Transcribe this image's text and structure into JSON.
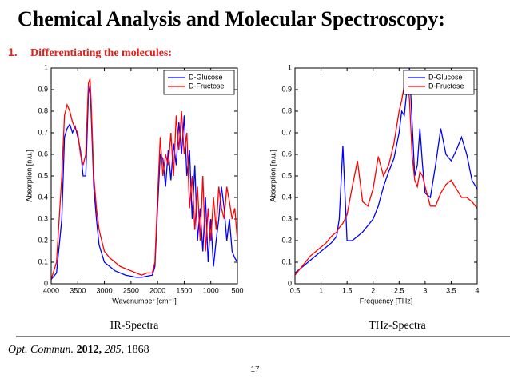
{
  "slide": {
    "title": "Chemical Analysis and Molecular Spectroscopy:",
    "item_number": "1.",
    "item_text": "Differentiating the molecules:",
    "captions": [
      "IR-Spectra",
      "THz-Spectra"
    ],
    "citation": {
      "journal": "Opt. Commun.",
      "year": "2012,",
      "volume": "285,",
      "pages": "1868"
    },
    "page_number": "17"
  },
  "chart_data": [
    {
      "type": "line",
      "xlabel": "Wavenumber [cm⁻¹]",
      "ylabel": "Absorption [n.u.]",
      "xlim": [
        4000,
        500
      ],
      "xticks": [
        4000,
        3500,
        3000,
        2500,
        2000,
        1500,
        1000,
        500
      ],
      "ylim": [
        0,
        1
      ],
      "yticks": [
        0,
        0.1,
        0.2,
        0.3,
        0.4,
        0.5,
        0.6,
        0.7,
        0.8,
        0.9,
        1
      ],
      "legend": "upper right",
      "x": [
        4000,
        3900,
        3800,
        3750,
        3700,
        3650,
        3600,
        3550,
        3500,
        3450,
        3400,
        3350,
        3300,
        3270,
        3250,
        3200,
        3150,
        3100,
        3000,
        2900,
        2800,
        2700,
        2600,
        2500,
        2400,
        2300,
        2200,
        2100,
        2050,
        2000,
        1950,
        1900,
        1850,
        1800,
        1750,
        1700,
        1650,
        1600,
        1550,
        1500,
        1450,
        1400,
        1350,
        1300,
        1250,
        1200,
        1150,
        1100,
        1050,
        1000,
        950,
        900,
        850,
        800,
        750,
        700,
        650,
        600,
        550,
        500
      ],
      "series": [
        {
          "name": "D-Glucose",
          "color": "#0000ff",
          "values": [
            0.02,
            0.05,
            0.3,
            0.68,
            0.72,
            0.74,
            0.7,
            0.73,
            0.68,
            0.62,
            0.5,
            0.5,
            0.88,
            0.92,
            0.8,
            0.45,
            0.3,
            0.18,
            0.1,
            0.08,
            0.06,
            0.05,
            0.04,
            0.035,
            0.03,
            0.03,
            0.035,
            0.04,
            0.08,
            0.35,
            0.6,
            0.58,
            0.45,
            0.62,
            0.48,
            0.65,
            0.55,
            0.75,
            0.6,
            0.78,
            0.5,
            0.62,
            0.3,
            0.55,
            0.2,
            0.35,
            0.15,
            0.4,
            0.1,
            0.3,
            0.08,
            0.2,
            0.3,
            0.45,
            0.35,
            0.2,
            0.3,
            0.15,
            0.12,
            0.1
          ]
        },
        {
          "name": "D-Fructose",
          "color": "#ff0000",
          "values": [
            0.02,
            0.1,
            0.5,
            0.78,
            0.83,
            0.8,
            0.75,
            0.72,
            0.7,
            0.6,
            0.55,
            0.6,
            0.93,
            0.95,
            0.85,
            0.5,
            0.35,
            0.25,
            0.15,
            0.12,
            0.1,
            0.08,
            0.07,
            0.06,
            0.05,
            0.04,
            0.05,
            0.05,
            0.1,
            0.4,
            0.68,
            0.5,
            0.6,
            0.55,
            0.7,
            0.5,
            0.78,
            0.62,
            0.8,
            0.6,
            0.7,
            0.35,
            0.5,
            0.25,
            0.45,
            0.2,
            0.5,
            0.15,
            0.35,
            0.2,
            0.4,
            0.25,
            0.45,
            0.35,
            0.3,
            0.45,
            0.38,
            0.3,
            0.35,
            0.2
          ]
        }
      ]
    },
    {
      "type": "line",
      "xlabel": "Frequency [THz]",
      "ylabel": "Absorption [n.u.]",
      "xlim": [
        0.5,
        4
      ],
      "xticks": [
        0.5,
        1,
        1.5,
        2,
        2.5,
        3,
        3.5,
        4
      ],
      "ylim": [
        0,
        1
      ],
      "yticks": [
        0,
        0.1,
        0.2,
        0.3,
        0.4,
        0.5,
        0.6,
        0.7,
        0.8,
        0.9,
        1
      ],
      "legend": "upper right",
      "x": [
        0.5,
        0.6,
        0.7,
        0.8,
        0.9,
        1.0,
        1.1,
        1.2,
        1.3,
        1.35,
        1.42,
        1.5,
        1.6,
        1.7,
        1.8,
        1.9,
        2.0,
        2.1,
        2.2,
        2.3,
        2.4,
        2.5,
        2.55,
        2.6,
        2.65,
        2.7,
        2.75,
        2.8,
        2.85,
        2.9,
        2.95,
        3.0,
        3.1,
        3.2,
        3.3,
        3.4,
        3.5,
        3.6,
        3.7,
        3.8,
        3.9,
        4.0
      ],
      "series": [
        {
          "name": "D-Glucose",
          "color": "#0000ff",
          "values": [
            0.05,
            0.07,
            0.09,
            0.11,
            0.13,
            0.15,
            0.17,
            0.19,
            0.22,
            0.3,
            0.64,
            0.2,
            0.2,
            0.22,
            0.24,
            0.27,
            0.3,
            0.36,
            0.45,
            0.52,
            0.58,
            0.7,
            0.8,
            0.78,
            0.9,
            1.0,
            0.75,
            0.5,
            0.55,
            0.72,
            0.55,
            0.42,
            0.4,
            0.55,
            0.72,
            0.6,
            0.57,
            0.62,
            0.68,
            0.6,
            0.48,
            0.44
          ]
        },
        {
          "name": "D-Fructose",
          "color": "#ff0000",
          "values": [
            0.04,
            0.07,
            0.1,
            0.13,
            0.15,
            0.17,
            0.19,
            0.22,
            0.24,
            0.26,
            0.28,
            0.32,
            0.45,
            0.57,
            0.38,
            0.36,
            0.44,
            0.59,
            0.5,
            0.55,
            0.65,
            0.8,
            0.85,
            0.92,
            0.99,
            0.85,
            0.6,
            0.48,
            0.45,
            0.52,
            0.5,
            0.45,
            0.36,
            0.36,
            0.42,
            0.46,
            0.48,
            0.44,
            0.4,
            0.4,
            0.38,
            0.35
          ]
        }
      ]
    }
  ]
}
